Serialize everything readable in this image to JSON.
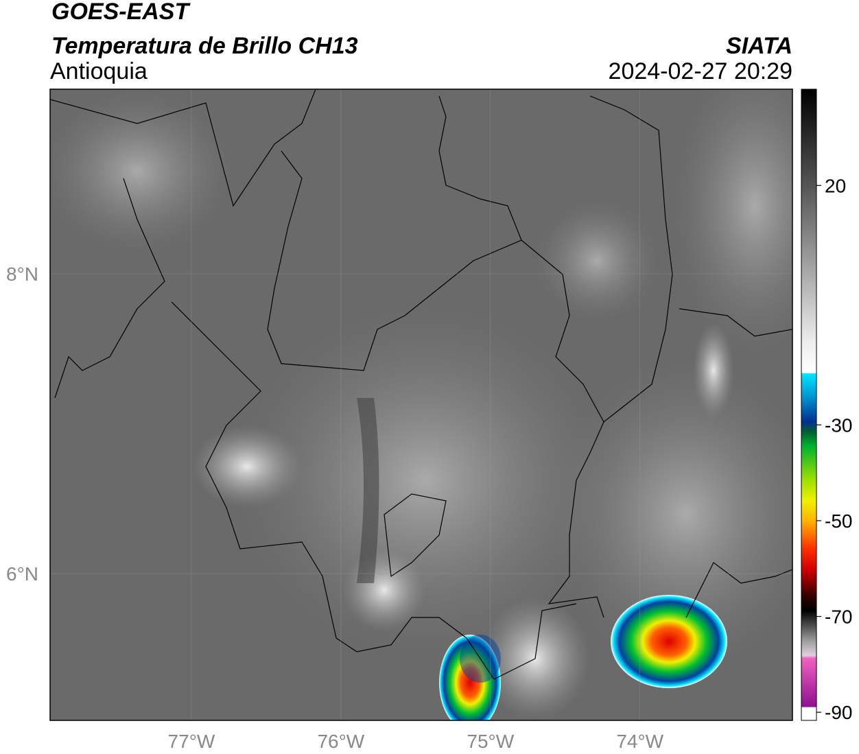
{
  "header": {
    "title": "GOES-EAST",
    "subtitle": "Temperatura de Brillo CH13",
    "region": "Antioquia",
    "source": "SIATA",
    "datetime": "2024-02-27 20:29"
  },
  "map": {
    "xlim": [
      -77.945,
      -72.98
    ],
    "ylim": [
      5.021,
      9.231
    ],
    "xticks": [
      {
        "value": -77,
        "label": "77°W"
      },
      {
        "value": -76,
        "label": "76°W"
      },
      {
        "value": -75,
        "label": "75°W"
      },
      {
        "value": -74,
        "label": "74°W"
      }
    ],
    "yticks": [
      {
        "value": 8,
        "label": "8°N"
      },
      {
        "value": 6,
        "label": "6°N"
      }
    ],
    "grid": true
  },
  "colorbar": {
    "ylim": [
      -91.7,
      40.1
    ],
    "yticks": [
      20,
      -30,
      -50,
      -70,
      -90
    ]
  }
}
